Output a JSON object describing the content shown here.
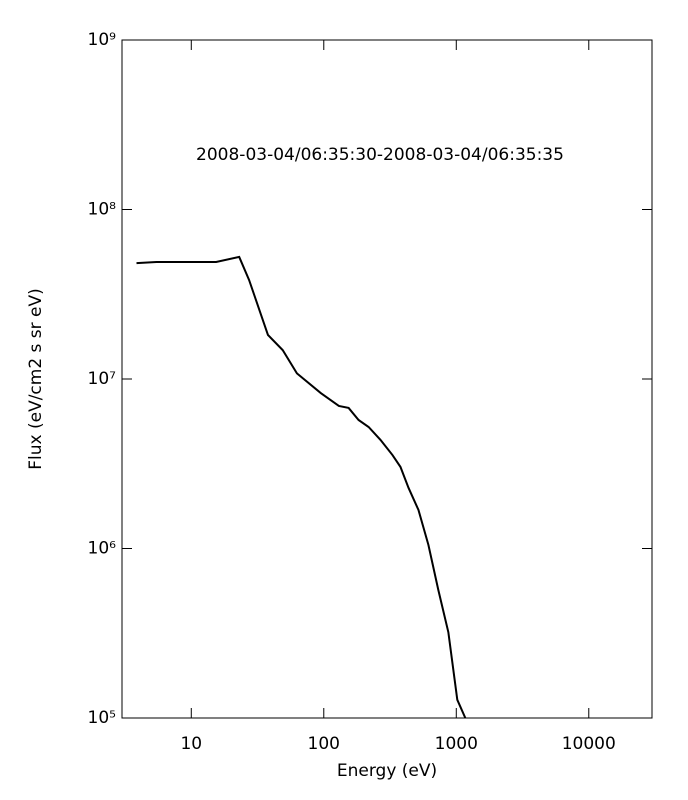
{
  "chart_data": {
    "type": "line",
    "annotation": "2008-03-04/06:35:30-2008-03-04/06:35:35",
    "x_label": "Energy (eV)",
    "y_label": "Flux (eV/cm2 s sr eV)",
    "x_log": true,
    "y_log": true,
    "xlim": [
      3,
      30000
    ],
    "ylim": [
      100000,
      1000000000
    ],
    "xticks": [
      10,
      100,
      1000,
      10000
    ],
    "yticks": [
      {
        "value": 100000,
        "label": "10⁵"
      },
      {
        "value": 1000000,
        "label": "10⁶"
      },
      {
        "value": 10000000,
        "label": "10⁷"
      },
      {
        "value": 100000000,
        "label": "10⁸"
      },
      {
        "value": 1000000000,
        "label": "10⁹"
      }
    ],
    "x": [
      3.86,
      5.46,
      15.4,
      23,
      27.3,
      37.9,
      49,
      62.7,
      94.9,
      130,
      154,
      183,
      218,
      268,
      330,
      379,
      436,
      518,
      616,
      732,
      871,
      1018,
      1170
    ],
    "series": [
      {
        "color": "#000000",
        "values": [
          48300000,
          49000000,
          49000000,
          52500000,
          38400000,
          18200000,
          14800000,
          10800000,
          8260000,
          6930000,
          6750000,
          5730000,
          5210000,
          4370000,
          3560000,
          3030000,
          2280000,
          1690000,
          1050000,
          569000,
          321000,
          128000,
          100000
        ]
      }
    ]
  }
}
